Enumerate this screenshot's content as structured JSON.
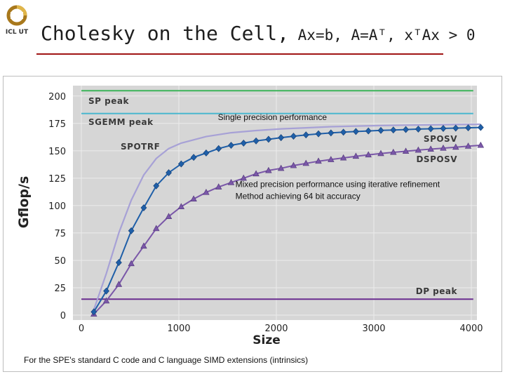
{
  "header": {
    "logo_text": "ICL UT",
    "title_main": "Cholesky on the Cell,",
    "title_eq": " Ax=b, A=Aᵀ, xᵀAx > 0"
  },
  "footnote": "For the SPE's standard C code and C language SIMD extensions (intrinsics)",
  "colors": {
    "sp_peak": "#3cb45a",
    "sgemm_peak": "#4ab7cf",
    "dp_peak": "#6a2d8f",
    "sposv": "#1f5fa8",
    "dsposv": "#7a57a8",
    "spotrf": "#a7a1d6",
    "plot_bg": "#d6d6d6",
    "grid": "#ececec",
    "title_rule": "#a01515"
  },
  "chart_data": {
    "type": "line",
    "xlabel": "Size",
    "ylabel": "Gflop/s",
    "xlim": [
      0,
      4200
    ],
    "ylim": [
      0,
      210
    ],
    "xticks": [
      0,
      1000,
      2000,
      3000,
      4000
    ],
    "yticks": [
      0,
      25,
      50,
      75,
      100,
      125,
      150,
      175,
      200
    ],
    "grid": true,
    "reference_lines": [
      {
        "name": "SP peak",
        "y": 204.8,
        "color": "#3cb45a"
      },
      {
        "name": "SGEMM peak",
        "y": 184,
        "color": "#4ab7cf"
      },
      {
        "name": "DP peak",
        "y": 14.6,
        "color": "#6a2d8f"
      }
    ],
    "series": [
      {
        "name": "SPOSV",
        "marker": "diamond",
        "x": [
          128,
          256,
          384,
          512,
          640,
          768,
          896,
          1024,
          1152,
          1280,
          1408,
          1536,
          1664,
          1792,
          1920,
          2048,
          2176,
          2304,
          2432,
          2560,
          2688,
          2816,
          2944,
          3072,
          3200,
          3328,
          3456,
          3584,
          3712,
          3840,
          3968,
          4096
        ],
        "y": [
          3,
          22,
          48,
          77,
          98,
          118,
          130,
          138,
          144,
          148,
          152,
          155,
          157,
          159,
          160.5,
          162,
          163.3,
          164.5,
          165.5,
          166.3,
          167,
          167.6,
          168.1,
          168.6,
          169,
          169.4,
          169.8,
          170.1,
          170.4,
          170.7,
          171,
          171.3
        ]
      },
      {
        "name": "DSPOSV",
        "marker": "triangle",
        "x": [
          128,
          256,
          384,
          512,
          640,
          768,
          896,
          1024,
          1152,
          1280,
          1408,
          1536,
          1664,
          1792,
          1920,
          2048,
          2176,
          2304,
          2432,
          2560,
          2688,
          2816,
          2944,
          3072,
          3200,
          3328,
          3456,
          3584,
          3712,
          3840,
          3968,
          4096
        ],
        "y": [
          1,
          13,
          28,
          47,
          63,
          79,
          90,
          99,
          106,
          112,
          117,
          121,
          125,
          129,
          132,
          134,
          136.5,
          138.5,
          140.5,
          142,
          143.5,
          145,
          146.3,
          147.5,
          148.6,
          149.6,
          150.6,
          151.5,
          152.4,
          153.3,
          154.2,
          155
        ]
      },
      {
        "name": "SPOTRF",
        "marker": "none",
        "x": [
          128,
          256,
          384,
          512,
          640,
          768,
          896,
          1024,
          1280,
          1536,
          1792,
          2048,
          2304,
          2560,
          2816,
          3072,
          3328,
          3584,
          3840,
          4096
        ],
        "y": [
          5,
          38,
          75,
          105,
          128,
          143,
          152,
          157,
          163,
          166.5,
          168.5,
          170,
          171,
          172,
          172.6,
          173,
          173.4,
          173.7,
          174,
          174.2
        ]
      }
    ],
    "annotations": [
      {
        "text": "Single precision performance",
        "x": 1400,
        "y": 178
      },
      {
        "text": "Mixed precision performance using iterative refinement",
        "x": 1580,
        "y": 117
      },
      {
        "text": "Method achieving 64 bit accuracy",
        "x": 1580,
        "y": 106
      }
    ]
  }
}
